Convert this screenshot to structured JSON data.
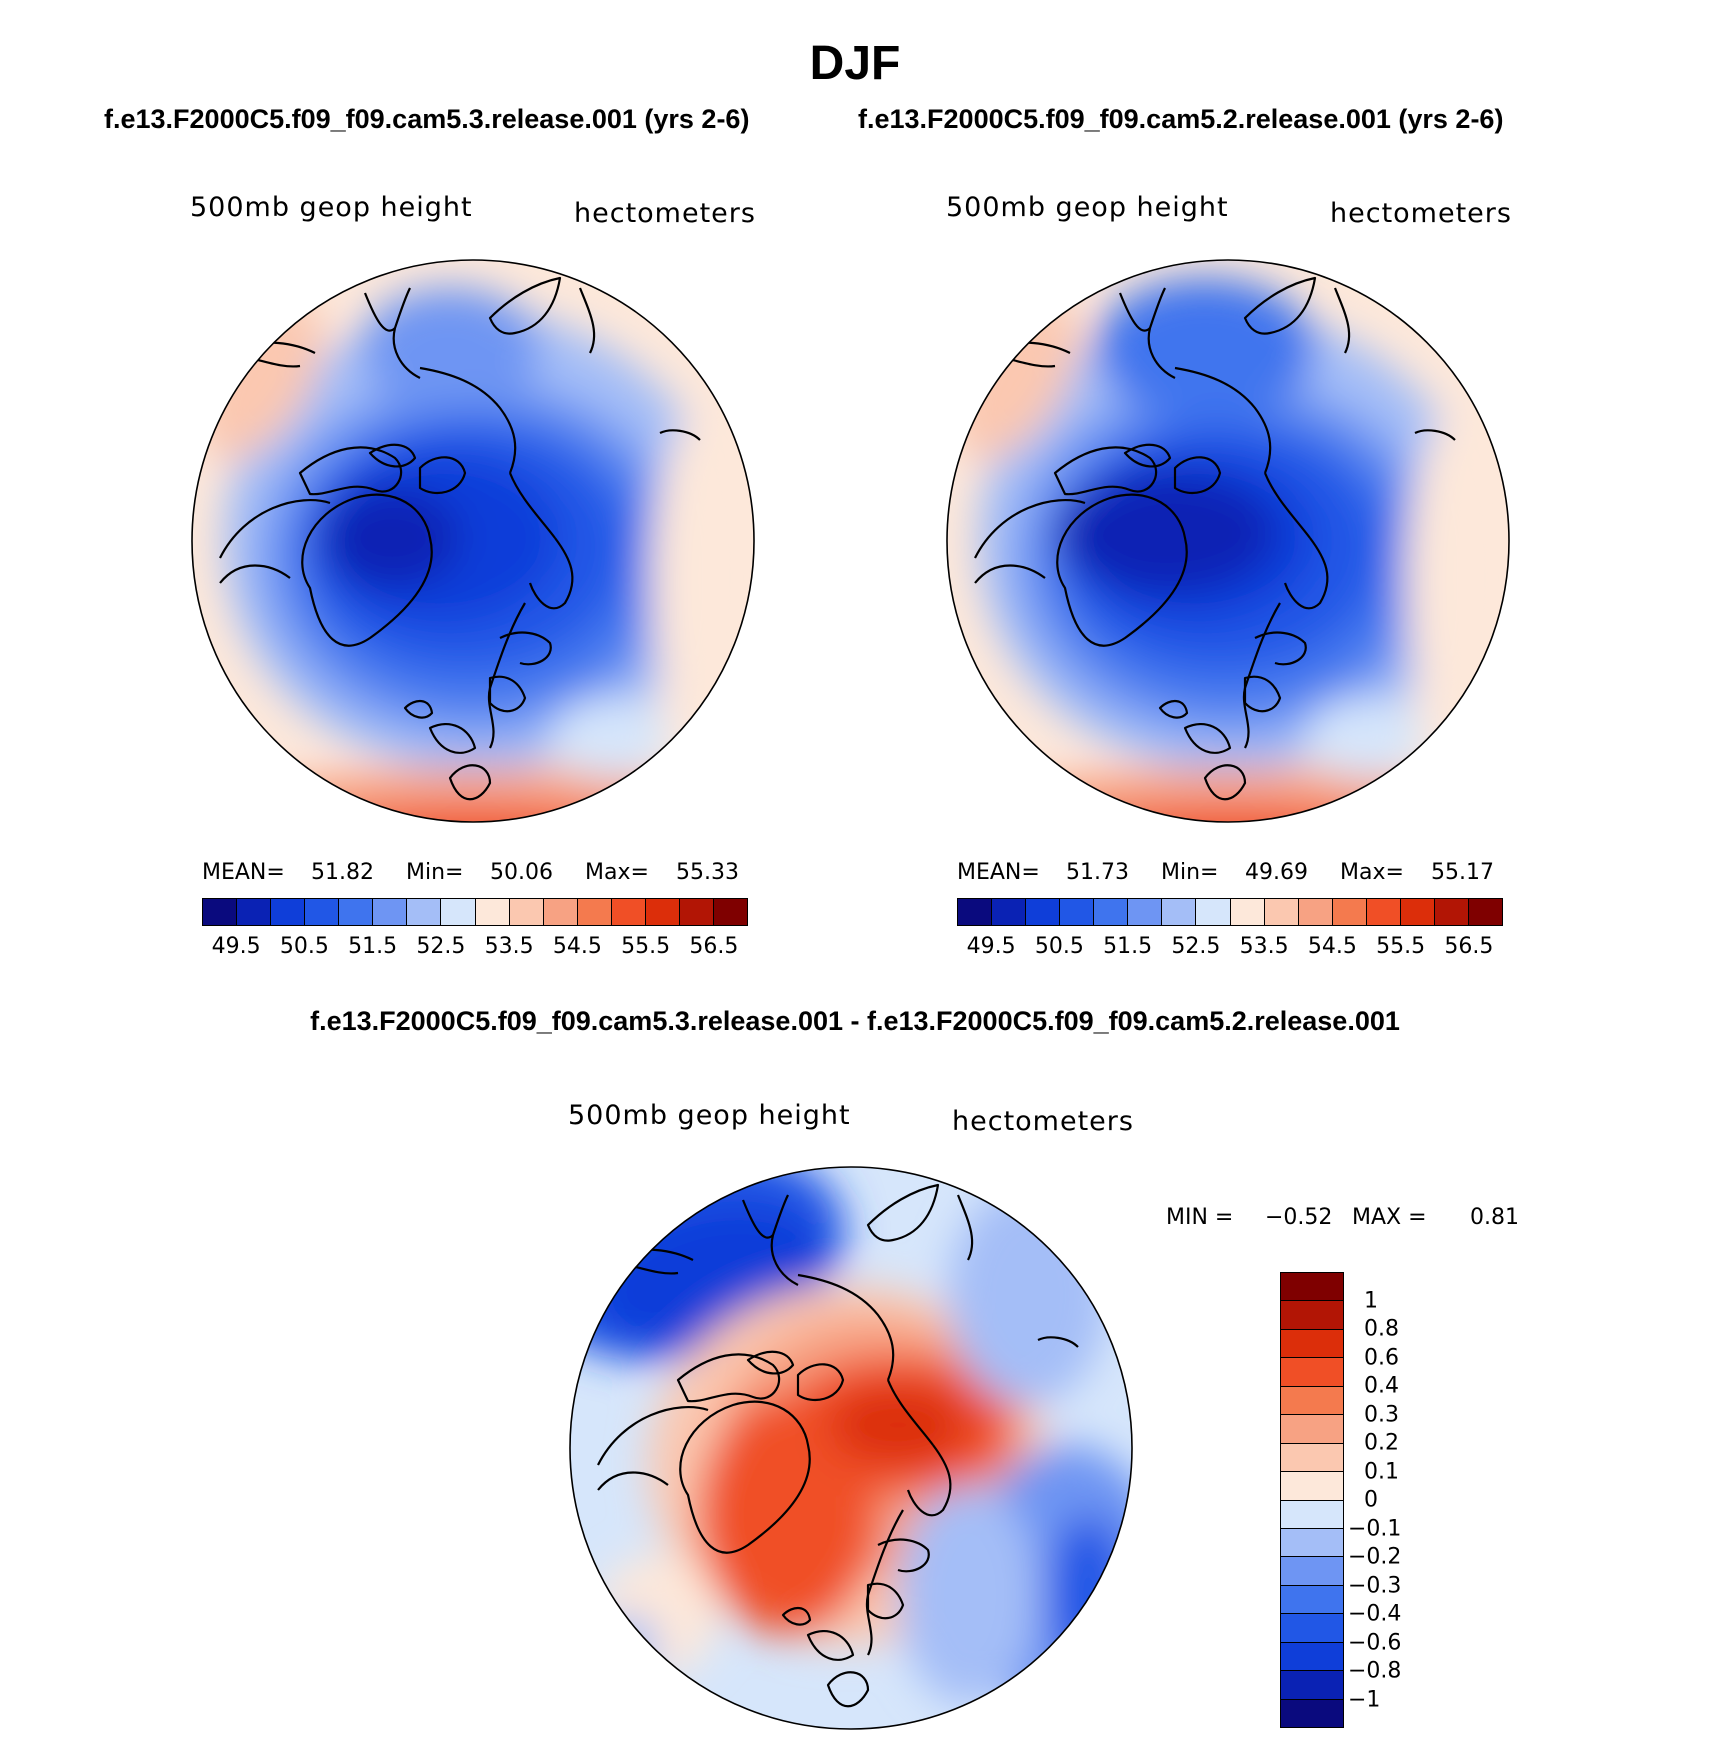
{
  "title": "DJF",
  "case_titles": [
    "f.e13.F2000C5.f09_f09.cam5.3.release.001 (yrs 2-6)",
    "f.e13.F2000C5.f09_f09.cam5.2.release.001 (yrs 2-6)"
  ],
  "diff_title": "f.e13.F2000C5.f09_f09.cam5.3.release.001 - f.e13.F2000C5.f09_f09.cam5.2.release.001",
  "field_label": "500mb geop height",
  "units_label": "hectometers",
  "stats": {
    "mean_label": "MEAN=",
    "min_label": "Min=",
    "max_label": "Max=",
    "left": {
      "mean": "51.82",
      "min": "50.06",
      "max": "55.33"
    },
    "right": {
      "mean": "51.73",
      "min": "49.69",
      "max": "55.17"
    }
  },
  "diff_stats": {
    "min_label": "MIN =",
    "min": "−0.52",
    "max_label": "MAX =",
    "max": "0.81"
  },
  "palette": {
    "abs": [
      "#0a0a7e",
      "#0a22b4",
      "#0f3ed9",
      "#2157e6",
      "#3f74ee",
      "#6e95f3",
      "#a4bef7",
      "#d6e6fb",
      "#fde8da",
      "#fbc8b0",
      "#f7a283",
      "#f47a4e",
      "#f04f26",
      "#dc2e0a",
      "#b21505",
      "#7f0000"
    ],
    "diff": [
      "#7f0000",
      "#b21505",
      "#dc2e0a",
      "#f04f26",
      "#f47a4e",
      "#f7a283",
      "#fbc8b0",
      "#fde8da",
      "#d6e6fb",
      "#a4bef7",
      "#6e95f3",
      "#3f74ee",
      "#2157e6",
      "#0f3ed9",
      "#0a22b4",
      "#0a0a7e"
    ]
  },
  "chart_data": [
    {
      "type": "heatmap",
      "title": "f.e13.F2000C5.f09_f09.cam5.3.release.001 (yrs 2-6)",
      "field": "500mb geop height",
      "units": "hectometers",
      "projection": "north-polar-stereographic",
      "contour_levels": [
        49.5,
        50.0,
        50.5,
        51.0,
        51.5,
        52.0,
        52.5,
        53.0,
        53.5,
        54.0,
        54.5,
        55.0,
        55.5,
        56.0,
        56.5
      ],
      "colorbar_tick_labels": [
        "49.5",
        "50.5",
        "51.5",
        "52.5",
        "53.5",
        "54.5",
        "55.5",
        "56.5"
      ],
      "mean": 51.82,
      "min": 50.06,
      "max": 55.33
    },
    {
      "type": "heatmap",
      "title": "f.e13.F2000C5.f09_f09.cam5.2.release.001 (yrs 2-6)",
      "field": "500mb geop height",
      "units": "hectometers",
      "projection": "north-polar-stereographic",
      "contour_levels": [
        49.5,
        50.0,
        50.5,
        51.0,
        51.5,
        52.0,
        52.5,
        53.0,
        53.5,
        54.0,
        54.5,
        55.0,
        55.5,
        56.0,
        56.5
      ],
      "colorbar_tick_labels": [
        "49.5",
        "50.5",
        "51.5",
        "52.5",
        "53.5",
        "54.5",
        "55.5",
        "56.5"
      ],
      "mean": 51.73,
      "min": 49.69,
      "max": 55.17
    },
    {
      "type": "heatmap",
      "title": "f.e13.F2000C5.f09_f09.cam5.3.release.001 - f.e13.F2000C5.f09_f09.cam5.2.release.001",
      "field": "500mb geop height",
      "units": "hectometers",
      "projection": "north-polar-stereographic",
      "contour_levels": [
        1,
        0.8,
        0.6,
        0.4,
        0.3,
        0.2,
        0.1,
        0,
        -0.1,
        -0.2,
        -0.3,
        -0.4,
        -0.6,
        -0.8,
        -1
      ],
      "colorbar_tick_labels": [
        "1",
        "0.8",
        "0.6",
        "0.4",
        "0.3",
        "0.2",
        "0.1",
        "0",
        "−0.1",
        "−0.2",
        "−0.3",
        "−0.4",
        "−0.6",
        "−0.8",
        "−1"
      ],
      "min": -0.52,
      "max": 0.81
    }
  ]
}
